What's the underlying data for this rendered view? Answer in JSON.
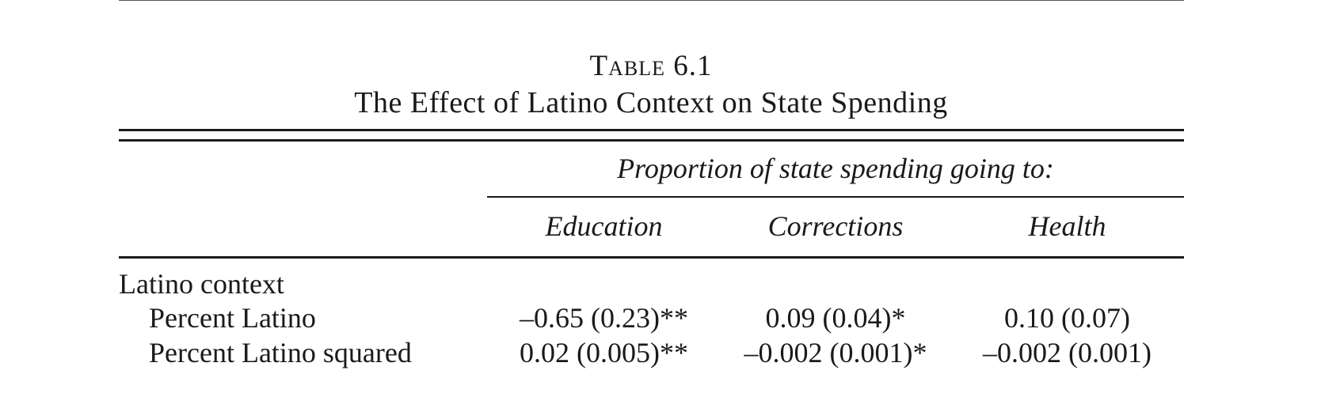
{
  "table": {
    "number": "Table 6.1",
    "title": "The Effect of Latino Context on State Spending",
    "spanner": "Proportion of state spending going to:",
    "columns": [
      "Education",
      "Corrections",
      "Health"
    ],
    "section": "Latino context",
    "rows": [
      {
        "label": "Percent Latino",
        "values": [
          "–0.65 (0.23)**",
          "0.09 (0.04)*",
          "0.10 (0.07)"
        ]
      },
      {
        "label": "Percent Latino squared",
        "values": [
          "0.02 (0.005)**",
          "–0.002 (0.001)*",
          "–0.002 (0.001)"
        ]
      }
    ]
  }
}
